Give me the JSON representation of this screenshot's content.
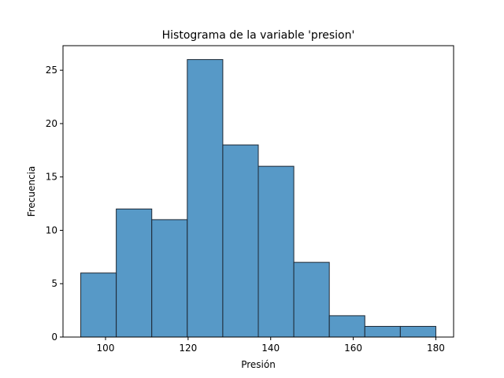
{
  "chart_data": {
    "type": "bar",
    "title": "Histograma de la variable 'presion'",
    "xlabel": "Presión",
    "ylabel": "Frecuencia",
    "bins": [
      {
        "start": 94.0,
        "end": 102.6,
        "count": 6
      },
      {
        "start": 102.6,
        "end": 111.2,
        "count": 12
      },
      {
        "start": 111.2,
        "end": 119.8,
        "count": 11
      },
      {
        "start": 119.8,
        "end": 128.4,
        "count": 26
      },
      {
        "start": 128.4,
        "end": 137.0,
        "count": 18
      },
      {
        "start": 137.0,
        "end": 145.6,
        "count": 16
      },
      {
        "start": 145.6,
        "end": 154.2,
        "count": 7
      },
      {
        "start": 154.2,
        "end": 162.8,
        "count": 2
      },
      {
        "start": 162.8,
        "end": 171.4,
        "count": 1
      },
      {
        "start": 171.4,
        "end": 180.0,
        "count": 1
      }
    ],
    "xlim": [
      89.7,
      184.3
    ],
    "ylim": [
      0,
      27.3
    ],
    "xticks": [
      100,
      120,
      140,
      160,
      180
    ],
    "yticks": [
      0,
      5,
      10,
      15,
      20,
      25
    ],
    "grid": false,
    "colors": {
      "bar_fill": "#5799c7",
      "bar_edge": "#1c2733"
    }
  }
}
